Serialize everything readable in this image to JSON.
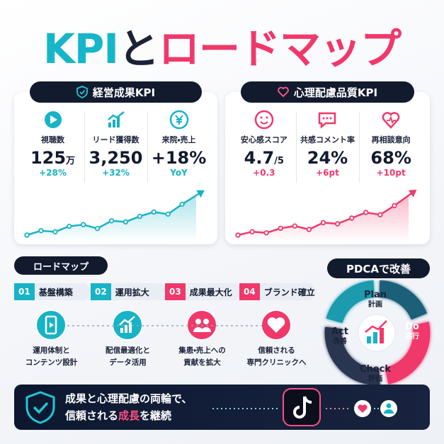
{
  "title": {
    "part1": "KPI",
    "part2": "と",
    "part3": "ロードマップ"
  },
  "kpi_panels": [
    {
      "title": "経営成果KPI",
      "color": "#17b3c6",
      "metrics": [
        {
          "label": "視聴数",
          "value": "125",
          "unit": "万",
          "change": "+28%"
        },
        {
          "label": "リード獲得数",
          "value": "3,250",
          "change": "+32%"
        },
        {
          "label": "来院・売上",
          "value": "+18%",
          "change": "YoY"
        }
      ],
      "trend": [
        6,
        14,
        12,
        22,
        25,
        18,
        32,
        30,
        40,
        48,
        44,
        62,
        78
      ]
    },
    {
      "title": "心理配慮品質KPI",
      "color": "#f0386b",
      "metrics": [
        {
          "label": "安心感スコア",
          "value": "4.7",
          "unit": "/5",
          "change": "+0.3"
        },
        {
          "label": "共感コメント率",
          "value": "24%",
          "change": "+6pt"
        },
        {
          "label": "再相談意向",
          "value": "68%",
          "change": "+10pt"
        }
      ],
      "trend": [
        4,
        10,
        8,
        16,
        20,
        14,
        26,
        24,
        34,
        44,
        40,
        56,
        74
      ]
    }
  ],
  "roadmap": {
    "title": "ロードマップ",
    "steps": [
      {
        "number": "01",
        "title": "基盤構築",
        "description": [
          "運用体制と",
          "コンテンツ設計"
        ],
        "color": "#17b3c6"
      },
      {
        "number": "02",
        "title": "運用拡大",
        "description": [
          "配信最適化と",
          "データ活用"
        ],
        "color": "#17b3c6"
      },
      {
        "number": "03",
        "title": "成果最大化",
        "description": [
          "集患・売上への",
          "貢献を拡大"
        ],
        "color": "#f0386b"
      },
      {
        "number": "04",
        "title": "ブランド確立",
        "description": [
          "信頼される",
          "専門クリニックへ"
        ],
        "color": "#f0386b"
      }
    ]
  },
  "pdca": {
    "title": "PDCAで改善",
    "stages": [
      {
        "name": "Plan",
        "label": "計画"
      },
      {
        "name": "Do",
        "label": "実行"
      },
      {
        "name": "Check",
        "label": "評価"
      },
      {
        "name": "Act",
        "label": "改善"
      }
    ]
  },
  "banner": {
    "line1": "成果と心理配慮の両輪で、",
    "line2_before": "信頼される",
    "line2_highlight": "成長",
    "line2_after": "を継続"
  }
}
